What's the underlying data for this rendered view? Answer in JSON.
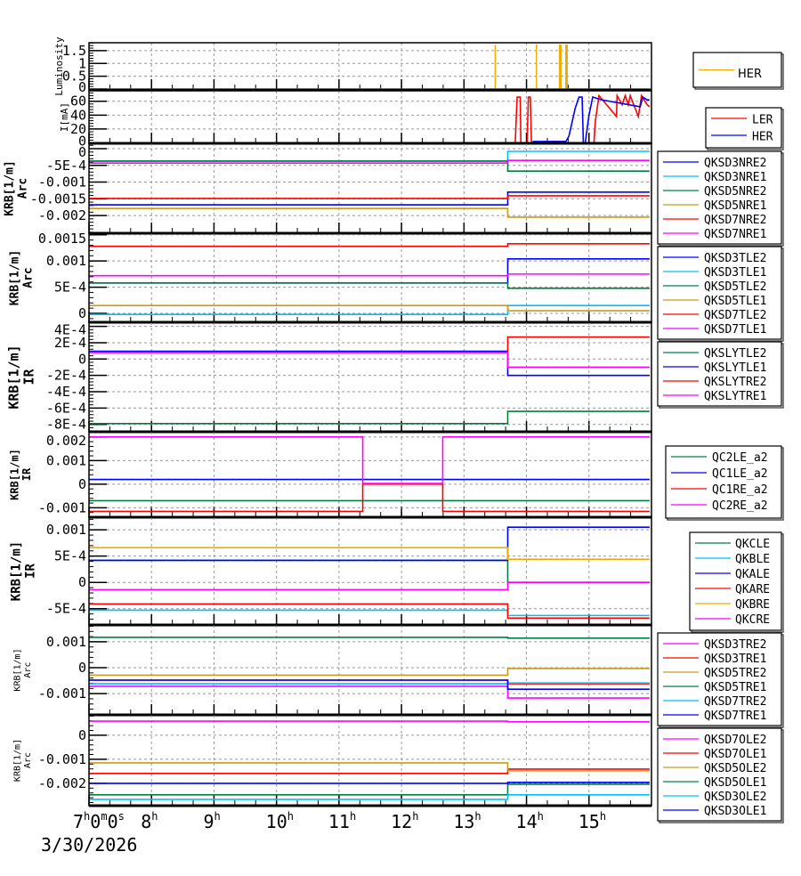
{
  "chart_data": {
    "type": "line",
    "x_unit": "hour",
    "xlim": [
      7,
      16
    ],
    "date_label": "3/30/2026",
    "x_ticks": [
      {
        "hour": 7,
        "parts": [
          "7",
          "h",
          "0",
          "m",
          "0",
          "s"
        ]
      },
      {
        "hour": 8,
        "parts": [
          "8",
          "h"
        ]
      },
      {
        "hour": 9,
        "parts": [
          "9",
          "h"
        ]
      },
      {
        "hour": 10,
        "parts": [
          "10",
          "h"
        ]
      },
      {
        "hour": 11,
        "parts": [
          "11",
          "h"
        ]
      },
      {
        "hour": 12,
        "parts": [
          "12",
          "h"
        ]
      },
      {
        "hour": 13,
        "parts": [
          "13",
          "h"
        ]
      },
      {
        "hour": 14,
        "parts": [
          "14",
          "h"
        ]
      },
      {
        "hour": 15,
        "parts": [
          "15",
          "h"
        ]
      }
    ],
    "colors": {
      "blue": "#0000ff",
      "cyan": "#00bfff",
      "green": "#008040",
      "gold": "#cc9a1a",
      "red": "#ff0000",
      "magenta": "#ff00ff",
      "orange": "#f0ac00"
    },
    "step_hour": 13.7,
    "panels": [
      {
        "ylabel": [
          "Luminosity"
        ],
        "ylim": [
          -0.035,
          1.81
        ],
        "ticks": [
          {
            "v": 0,
            "t": "0"
          },
          {
            "v": 0.5,
            "t": "0.5"
          },
          {
            "v": 1,
            "t": "1"
          },
          {
            "v": 1.5,
            "t": "1.5"
          }
        ],
        "series": [
          {
            "name": "HER",
            "color": "orange",
            "spikes": [
              13.5,
              14.16,
              14.54,
              14.64
            ],
            "spike_values": [
              1.72,
              1.75,
              1.74,
              1.74
            ]
          }
        ]
      },
      {
        "ylabel": [
          "I[mA]"
        ],
        "ylim": [
          -0.6,
          75
        ],
        "ticks": [
          {
            "v": 0,
            "t": "0"
          },
          {
            "v": 20,
            "t": "20"
          },
          {
            "v": 40,
            "t": "40"
          },
          {
            "v": 60,
            "t": "60"
          }
        ],
        "series": [
          {
            "name": "LER",
            "color": "red",
            "x": [
              7,
              13.82,
              13.85,
              13.9,
              13.91,
              14.01,
              14.03,
              14.06,
              14.08,
              14.4,
              14.42,
              14.6,
              14.62,
              15.08,
              15.1,
              15.16,
              15.44,
              15.45,
              15.53,
              15.58,
              15.63,
              15.66,
              15.79,
              15.84,
              15.93,
              15.97
            ],
            "y": [
              0,
              0,
              66,
              66,
              0,
              0,
              66,
              66,
              0,
              0,
              2,
              2,
              0,
              0,
              30,
              68,
              38,
              68,
              55,
              68,
              55,
              68,
              38,
              68,
              55,
              52
            ]
          },
          {
            "name": "HER",
            "color": "blue",
            "x": [
              7,
              14.1,
              14.11,
              14.63,
              14.68,
              14.78,
              14.84,
              14.89,
              14.91,
              14.94,
              15.0,
              15.06,
              15.2,
              15.82,
              15.86,
              15.93,
              15.97
            ],
            "y": [
              0,
              0,
              2,
              2,
              10,
              50,
              66,
              66,
              0,
              0,
              40,
              66,
              62,
              52,
              66,
              62,
              62
            ]
          }
        ]
      },
      {
        "ylabel": [
          "KRB[1/m]",
          "Arc"
        ],
        "ylim": [
          -0.00253,
          0.00016
        ],
        "ticks": [
          {
            "v": 0,
            "t": "0"
          },
          {
            "v": -0.0005,
            "t": "-5E-4"
          },
          {
            "v": -0.001,
            "t": "-0.001"
          },
          {
            "v": -0.0015,
            "t": "-0.0015"
          },
          {
            "v": -0.002,
            "t": "-0.002"
          }
        ],
        "series": [
          {
            "name": "QKSD3NRE2",
            "color": "blue",
            "before": -0.00168,
            "after": -0.0013
          },
          {
            "name": "QKSD3NRE1",
            "color": "cyan",
            "before": -0.00037,
            "after": -8e-05
          },
          {
            "name": "QKSD5NRE2",
            "color": "green",
            "before": -0.00037,
            "after": -0.00067
          },
          {
            "name": "QKSD5NRE1",
            "color": "gold",
            "before": -0.00179,
            "after": -0.00205
          },
          {
            "name": "QKSD7NRE2",
            "color": "red",
            "before": -0.00149,
            "after": -0.00141
          },
          {
            "name": "QKSD7NRE1",
            "color": "magenta",
            "before": -0.00043,
            "after": -0.00035
          }
        ]
      },
      {
        "ylabel": [
          "KRB[1/m]",
          "Arc"
        ],
        "ylim": [
          -0.00017,
          0.00153
        ],
        "ticks": [
          {
            "v": 0,
            "t": "0"
          },
          {
            "v": 0.0005,
            "t": "5E-4"
          },
          {
            "v": 0.001,
            "t": "0.001"
          },
          {
            "v": 0.0015,
            "t": "0.0015"
          }
        ],
        "series": [
          {
            "name": "QKSD3TLE2",
            "color": "blue",
            "before": 0.00058,
            "after": 0.00104
          },
          {
            "name": "QKSD3TLE1",
            "color": "cyan",
            "before": -2e-05,
            "after": 0.00015
          },
          {
            "name": "QKSD5TLE2",
            "color": "green",
            "before": 0.00058,
            "after": 0.00048
          },
          {
            "name": "QKSD5TLE1",
            "color": "gold",
            "before": 0.00015,
            "after": 5e-05
          },
          {
            "name": "QKSD7TLE2",
            "color": "red",
            "before": 0.00128,
            "after": 0.00133
          },
          {
            "name": "QKSD7TLE1",
            "color": "magenta",
            "before": 0.00072,
            "after": 0.00075
          }
        ]
      },
      {
        "ylabel": [
          "KRB[1/m]",
          "IR"
        ],
        "ylim": [
          -0.00089,
          0.00045
        ],
        "ticks": [
          {
            "v": 0.0004,
            "t": "4E-4"
          },
          {
            "v": 0.0002,
            "t": "2E-4"
          },
          {
            "v": 0,
            "t": "0"
          },
          {
            "v": -0.0002,
            "t": "-2E-4"
          },
          {
            "v": -0.0004,
            "t": "-4E-4"
          },
          {
            "v": -0.0006,
            "t": "-6E-4"
          },
          {
            "v": -0.0008,
            "t": "-8E-4"
          }
        ],
        "series": [
          {
            "name": "QKSLYTLE2",
            "color": "green",
            "before": -0.00079,
            "after": -0.00064
          },
          {
            "name": "QKSLYTLE1",
            "color": "blue",
            "before": 9.5e-05,
            "after": -0.0002
          },
          {
            "name": "QKSLYTRE2",
            "color": "red",
            "before": 8e-05,
            "after": 0.00027
          },
          {
            "name": "QKSLYTRE1",
            "color": "magenta",
            "before": 8e-05,
            "after": -0.0001
          }
        ]
      },
      {
        "ylabel": [
          "KRB[1/m]",
          "IR"
        ],
        "ylim": [
          -0.0014,
          0.00222
        ],
        "ticks": [
          {
            "v": 0.002,
            "t": "0.002"
          },
          {
            "v": 0.001,
            "t": "0.001"
          },
          {
            "v": 0,
            "t": "0"
          },
          {
            "v": -0.001,
            "t": "-0.001"
          }
        ],
        "series": [
          {
            "name": "QC2LE_a2",
            "color": "green",
            "x": [
              7,
              16
            ],
            "y": [
              -0.0007,
              -0.0007
            ]
          },
          {
            "name": "QC1LE_a2",
            "color": "blue",
            "x": [
              7,
              16
            ],
            "y": [
              0.0002,
              0.0002
            ]
          },
          {
            "name": "QC1RE_a2",
            "color": "red",
            "x": [
              7,
              11.38,
              11.38,
              12.66,
              12.66,
              16
            ],
            "y": [
              -0.00115,
              -0.00115,
              0,
              0,
              -0.00115,
              -0.00115
            ]
          },
          {
            "name": "QC2RE_a2",
            "color": "magenta",
            "x": [
              7,
              11.38,
              11.38,
              12.66,
              12.66,
              16
            ],
            "y": [
              0.002,
              0.002,
              3e-05,
              3e-05,
              0.002,
              0.002
            ]
          }
        ]
      },
      {
        "ylabel": [
          "KRB[1/m]",
          "IR"
        ],
        "ylim": [
          -0.00081,
          0.00124
        ],
        "ticks": [
          {
            "v": 0.001,
            "t": "0.001"
          },
          {
            "v": 0.0005,
            "t": "5E-4"
          },
          {
            "v": 0,
            "t": "0"
          },
          {
            "v": -0.0005,
            "t": "-5E-4"
          }
        ],
        "series": [
          {
            "name": "QKCLE",
            "color": "green",
            "before": 0.00042,
            "after": 0.0
          },
          {
            "name": "QKBLE",
            "color": "cyan",
            "before": -0.00053,
            "after": -0.00063
          },
          {
            "name": "QKALE",
            "color": "blue",
            "before": 0.00042,
            "after": 0.00105
          },
          {
            "name": "QKARE",
            "color": "red",
            "before": -0.00041,
            "after": -0.00068
          },
          {
            "name": "QKBRE",
            "color": "orange",
            "before": 0.00066,
            "after": 0.00044
          },
          {
            "name": "QKCRE",
            "color": "magenta",
            "before": -0.00014,
            "after": 0.0
          }
        ]
      },
      {
        "ylabel": [
          "KRB[1/m]",
          "Arc"
        ],
        "ylim": [
          -0.00182,
          0.00165
        ],
        "ticks": [
          {
            "v": 0.001,
            "t": "0.001"
          },
          {
            "v": 0,
            "t": "0"
          },
          {
            "v": -0.001,
            "t": "-0.001"
          }
        ],
        "series": [
          {
            "name": "QKSD3TRE2",
            "color": "magenta",
            "before": -0.00072,
            "after": -0.00117
          },
          {
            "name": "QKSD3TRE1",
            "color": "red",
            "before": -0.00048,
            "after": -0.00062
          },
          {
            "name": "QKSD5TRE2",
            "color": "gold",
            "before": -0.00029,
            "after": -3e-05
          },
          {
            "name": "QKSD5TRE1",
            "color": "green",
            "before": 0.00117,
            "after": 0.00114
          },
          {
            "name": "QKSD7TRE2",
            "color": "cyan",
            "before": -0.00062,
            "after": -0.00059
          },
          {
            "name": "QKSD7TRE1",
            "color": "blue",
            "before": -0.00048,
            "after": -0.00083
          }
        ]
      },
      {
        "ylabel": [
          "KRB[1/m]",
          "Arc"
        ],
        "ylim": [
          -0.00293,
          0.00085
        ],
        "ticks": [
          {
            "v": 0,
            "t": "0"
          },
          {
            "v": -0.001,
            "t": "-0.001"
          },
          {
            "v": -0.002,
            "t": "-0.002"
          }
        ],
        "series": [
          {
            "name": "QKSD7OLE2",
            "color": "magenta",
            "before": 0.00059,
            "after": 0.00056
          },
          {
            "name": "QKSD7OLE1",
            "color": "red",
            "before": -0.00159,
            "after": -0.00141
          },
          {
            "name": "QKSD5OLE2",
            "color": "gold",
            "before": -0.00115,
            "after": -0.00148
          },
          {
            "name": "QKSD5OLE1",
            "color": "green",
            "before": -0.00248,
            "after": -0.00204
          },
          {
            "name": "QKSD3OLE2",
            "color": "cyan",
            "before": -0.00267,
            "after": -0.00248
          },
          {
            "name": "QKSD3OLE1",
            "color": "blue",
            "before": -0.002,
            "after": -0.00196
          }
        ]
      }
    ]
  }
}
